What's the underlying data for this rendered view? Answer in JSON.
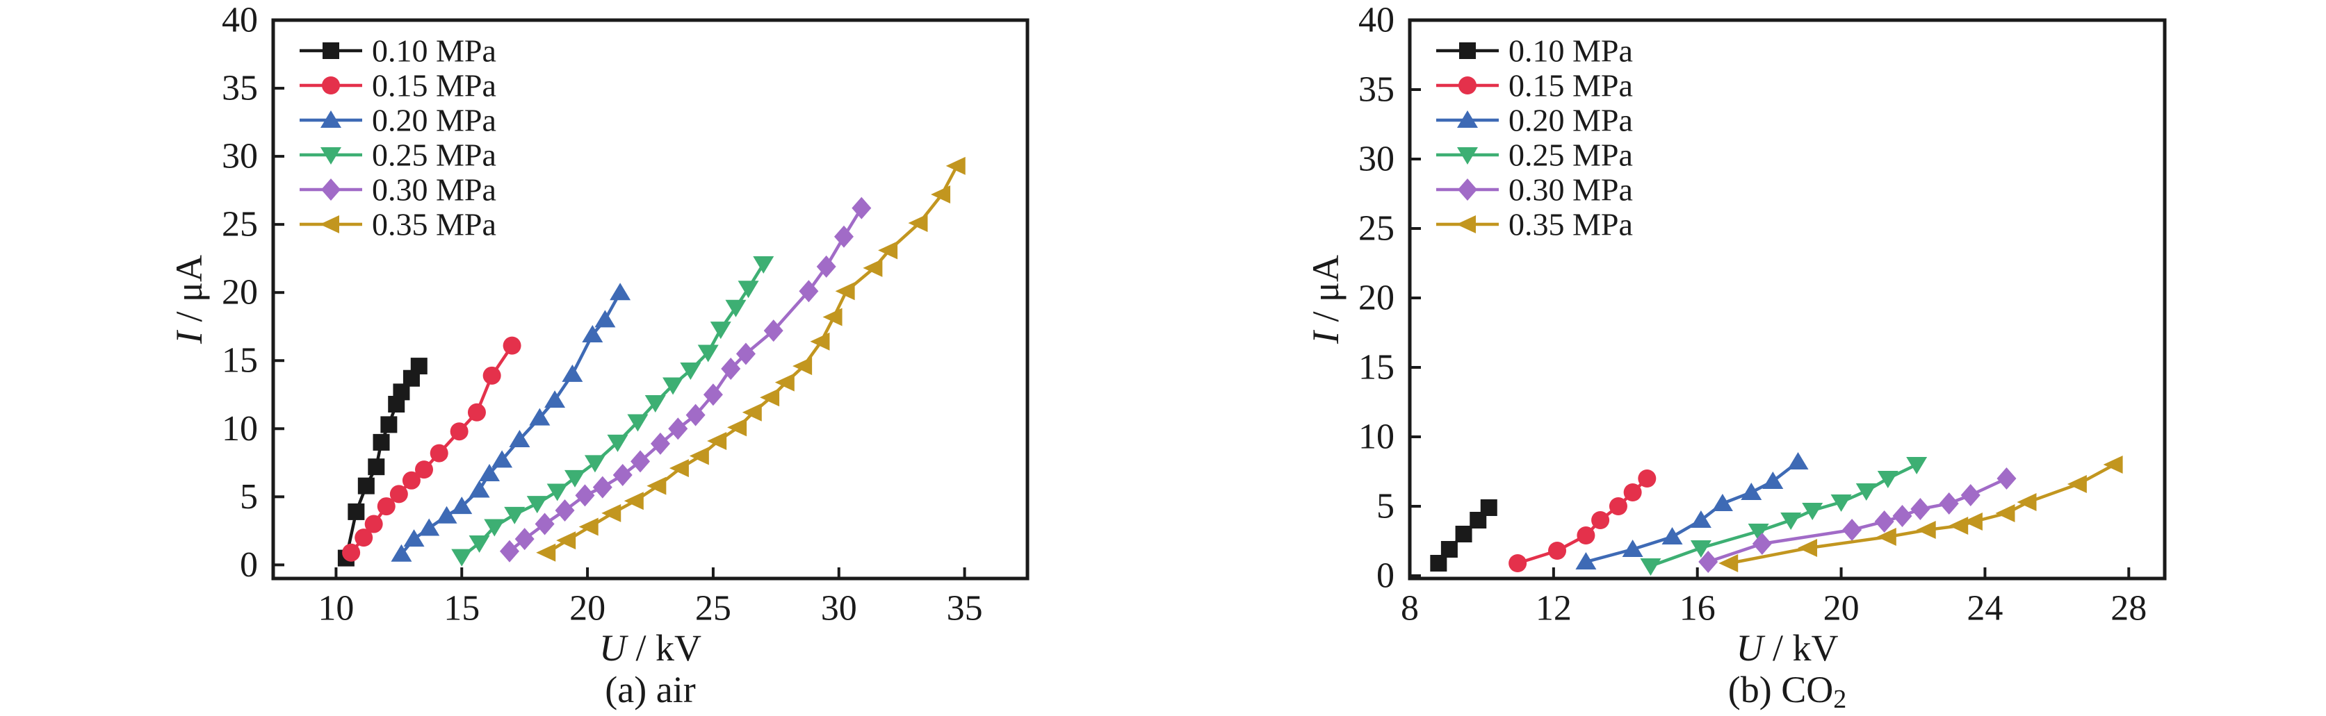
{
  "figure": {
    "background": "#ffffff",
    "text_color": "#1a1a1a"
  },
  "chart_data": [
    {
      "type": "line",
      "title": "",
      "caption": "(a) air",
      "caption_parts": {
        "main": "(a) air",
        "sub": ""
      },
      "xlabel": "U / kV",
      "xlabel_parts": {
        "var": "U",
        "rest": " / kV"
      },
      "ylabel": "I / μA",
      "ylabel_parts": {
        "var": "I",
        "rest": " / μA"
      },
      "xlim": [
        7.5,
        37.5
      ],
      "ylim": [
        -1,
        40
      ],
      "xticks": [
        10,
        15,
        20,
        25,
        30,
        35
      ],
      "yticks": [
        0,
        5,
        10,
        15,
        20,
        25,
        30,
        35,
        40
      ],
      "grid": false,
      "legend_position": "top-left-inside",
      "series": [
        {
          "name": "0.10 MPa",
          "color": "#1a1a1a",
          "marker": "square",
          "points": [
            [
              10.4,
              0.5
            ],
            [
              10.8,
              3.9
            ],
            [
              11.2,
              5.8
            ],
            [
              11.6,
              7.2
            ],
            [
              11.8,
              9.0
            ],
            [
              12.1,
              10.3
            ],
            [
              12.4,
              11.8
            ],
            [
              12.6,
              12.7
            ],
            [
              13.0,
              13.7
            ],
            [
              13.3,
              14.6
            ]
          ]
        },
        {
          "name": "0.15 MPa",
          "color": "#e4314b",
          "marker": "circle",
          "points": [
            [
              10.6,
              0.9
            ],
            [
              11.1,
              2.0
            ],
            [
              11.5,
              3.0
            ],
            [
              12.0,
              4.3
            ],
            [
              12.5,
              5.2
            ],
            [
              13.0,
              6.2
            ],
            [
              13.5,
              7.0
            ],
            [
              14.1,
              8.2
            ],
            [
              14.9,
              9.8
            ],
            [
              15.6,
              11.2
            ],
            [
              16.2,
              13.9
            ],
            [
              17.0,
              16.1
            ]
          ]
        },
        {
          "name": "0.20 MPa",
          "color": "#3e6ab5",
          "marker": "triangle-up",
          "points": [
            [
              12.6,
              0.8
            ],
            [
              13.1,
              1.9
            ],
            [
              13.7,
              2.7
            ],
            [
              14.4,
              3.6
            ],
            [
              15.0,
              4.3
            ],
            [
              15.7,
              5.5
            ],
            [
              16.1,
              6.7
            ],
            [
              16.6,
              7.7
            ],
            [
              17.3,
              9.2
            ],
            [
              18.1,
              10.8
            ],
            [
              18.7,
              12.1
            ],
            [
              19.4,
              14.0
            ],
            [
              20.2,
              16.9
            ],
            [
              20.7,
              18.0
            ],
            [
              21.3,
              20.0
            ]
          ]
        },
        {
          "name": "0.25 MPa",
          "color": "#3daf73",
          "marker": "triangle-down",
          "points": [
            [
              15.0,
              0.6
            ],
            [
              15.7,
              1.6
            ],
            [
              16.3,
              2.8
            ],
            [
              17.1,
              3.7
            ],
            [
              18.0,
              4.5
            ],
            [
              18.8,
              5.4
            ],
            [
              19.5,
              6.4
            ],
            [
              20.3,
              7.5
            ],
            [
              21.2,
              9.0
            ],
            [
              22.0,
              10.5
            ],
            [
              22.7,
              11.9
            ],
            [
              23.4,
              13.2
            ],
            [
              24.1,
              14.3
            ],
            [
              24.8,
              15.6
            ],
            [
              25.3,
              17.3
            ],
            [
              25.9,
              18.9
            ],
            [
              26.4,
              20.3
            ],
            [
              27.0,
              22.1
            ]
          ]
        },
        {
          "name": "0.30 MPa",
          "color": "#a16bc7",
          "marker": "diamond",
          "points": [
            [
              16.9,
              1.0
            ],
            [
              17.5,
              1.9
            ],
            [
              18.3,
              3.0
            ],
            [
              19.1,
              4.0
            ],
            [
              19.9,
              5.1
            ],
            [
              20.6,
              5.7
            ],
            [
              21.4,
              6.6
            ],
            [
              22.1,
              7.6
            ],
            [
              22.9,
              8.9
            ],
            [
              23.6,
              10.0
            ],
            [
              24.3,
              11.0
            ],
            [
              25.0,
              12.5
            ],
            [
              25.7,
              14.4
            ],
            [
              26.3,
              15.5
            ],
            [
              27.4,
              17.2
            ],
            [
              28.8,
              20.1
            ],
            [
              29.5,
              21.9
            ],
            [
              30.2,
              24.1
            ],
            [
              30.9,
              26.2
            ]
          ]
        },
        {
          "name": "0.35 MPa",
          "color": "#c2961f",
          "marker": "triangle-left",
          "points": [
            [
              18.4,
              0.9
            ],
            [
              19.2,
              1.8
            ],
            [
              20.1,
              2.8
            ],
            [
              21.0,
              3.8
            ],
            [
              21.9,
              4.7
            ],
            [
              22.8,
              5.8
            ],
            [
              23.7,
              7.1
            ],
            [
              24.5,
              8.0
            ],
            [
              25.2,
              9.1
            ],
            [
              26.0,
              10.1
            ],
            [
              26.6,
              11.2
            ],
            [
              27.3,
              12.3
            ],
            [
              27.9,
              13.4
            ],
            [
              28.6,
              14.6
            ],
            [
              29.3,
              16.4
            ],
            [
              29.8,
              18.2
            ],
            [
              30.3,
              20.1
            ],
            [
              31.4,
              21.8
            ],
            [
              32.0,
              23.1
            ],
            [
              33.2,
              25.1
            ],
            [
              34.1,
              27.2
            ],
            [
              34.7,
              29.3
            ]
          ]
        }
      ]
    },
    {
      "type": "line",
      "title": "",
      "caption": "(b) CO2",
      "caption_parts": {
        "main": "(b) CO",
        "sub": "2"
      },
      "xlabel": "U / kV",
      "xlabel_parts": {
        "var": "U",
        "rest": " / kV"
      },
      "ylabel": "I / μA",
      "ylabel_parts": {
        "var": "I",
        "rest": " / μA"
      },
      "xlim": [
        8,
        29
      ],
      "ylim": [
        -0.2,
        40
      ],
      "xticks": [
        8,
        12,
        16,
        20,
        24,
        28
      ],
      "yticks": [
        0,
        5,
        10,
        15,
        20,
        25,
        30,
        35,
        40
      ],
      "grid": false,
      "legend_position": "top-left-inside",
      "series": [
        {
          "name": "0.10 MPa",
          "color": "#1a1a1a",
          "marker": "square",
          "points": [
            [
              8.8,
              0.9
            ],
            [
              9.1,
              1.9
            ],
            [
              9.5,
              3.0
            ],
            [
              9.9,
              4.0
            ],
            [
              10.2,
              4.9
            ]
          ]
        },
        {
          "name": "0.15 MPa",
          "color": "#e4314b",
          "marker": "circle",
          "points": [
            [
              11.0,
              0.9
            ],
            [
              12.1,
              1.8
            ],
            [
              12.9,
              2.9
            ],
            [
              13.3,
              4.0
            ],
            [
              13.8,
              5.0
            ],
            [
              14.2,
              6.0
            ],
            [
              14.6,
              7.0
            ]
          ]
        },
        {
          "name": "0.20 MPa",
          "color": "#3e6ab5",
          "marker": "triangle-up",
          "points": [
            [
              12.9,
              1.0
            ],
            [
              14.2,
              1.9
            ],
            [
              15.3,
              2.8
            ],
            [
              16.1,
              4.0
            ],
            [
              16.7,
              5.2
            ],
            [
              17.5,
              6.0
            ],
            [
              18.1,
              6.8
            ],
            [
              18.8,
              8.2
            ]
          ]
        },
        {
          "name": "0.25 MPa",
          "color": "#3daf73",
          "marker": "triangle-down",
          "points": [
            [
              14.7,
              0.7
            ],
            [
              16.1,
              2.0
            ],
            [
              17.7,
              3.2
            ],
            [
              18.6,
              4.0
            ],
            [
              19.2,
              4.7
            ],
            [
              20.0,
              5.3
            ],
            [
              20.7,
              6.1
            ],
            [
              21.3,
              7.0
            ],
            [
              22.1,
              8.0
            ]
          ]
        },
        {
          "name": "0.30 MPa",
          "color": "#a16bc7",
          "marker": "diamond",
          "points": [
            [
              16.3,
              1.0
            ],
            [
              17.8,
              2.3
            ],
            [
              20.3,
              3.3
            ],
            [
              21.2,
              3.9
            ],
            [
              21.7,
              4.3
            ],
            [
              22.2,
              4.8
            ],
            [
              23.0,
              5.2
            ],
            [
              23.6,
              5.8
            ],
            [
              24.6,
              7.0
            ]
          ]
        },
        {
          "name": "0.35 MPa",
          "color": "#c2961f",
          "marker": "triangle-left",
          "points": [
            [
              16.9,
              0.9
            ],
            [
              19.1,
              2.0
            ],
            [
              21.3,
              2.8
            ],
            [
              22.4,
              3.3
            ],
            [
              23.3,
              3.6
            ],
            [
              23.7,
              3.9
            ],
            [
              24.6,
              4.5
            ],
            [
              25.2,
              5.3
            ],
            [
              26.6,
              6.6
            ],
            [
              27.6,
              8.0
            ]
          ]
        }
      ]
    }
  ]
}
